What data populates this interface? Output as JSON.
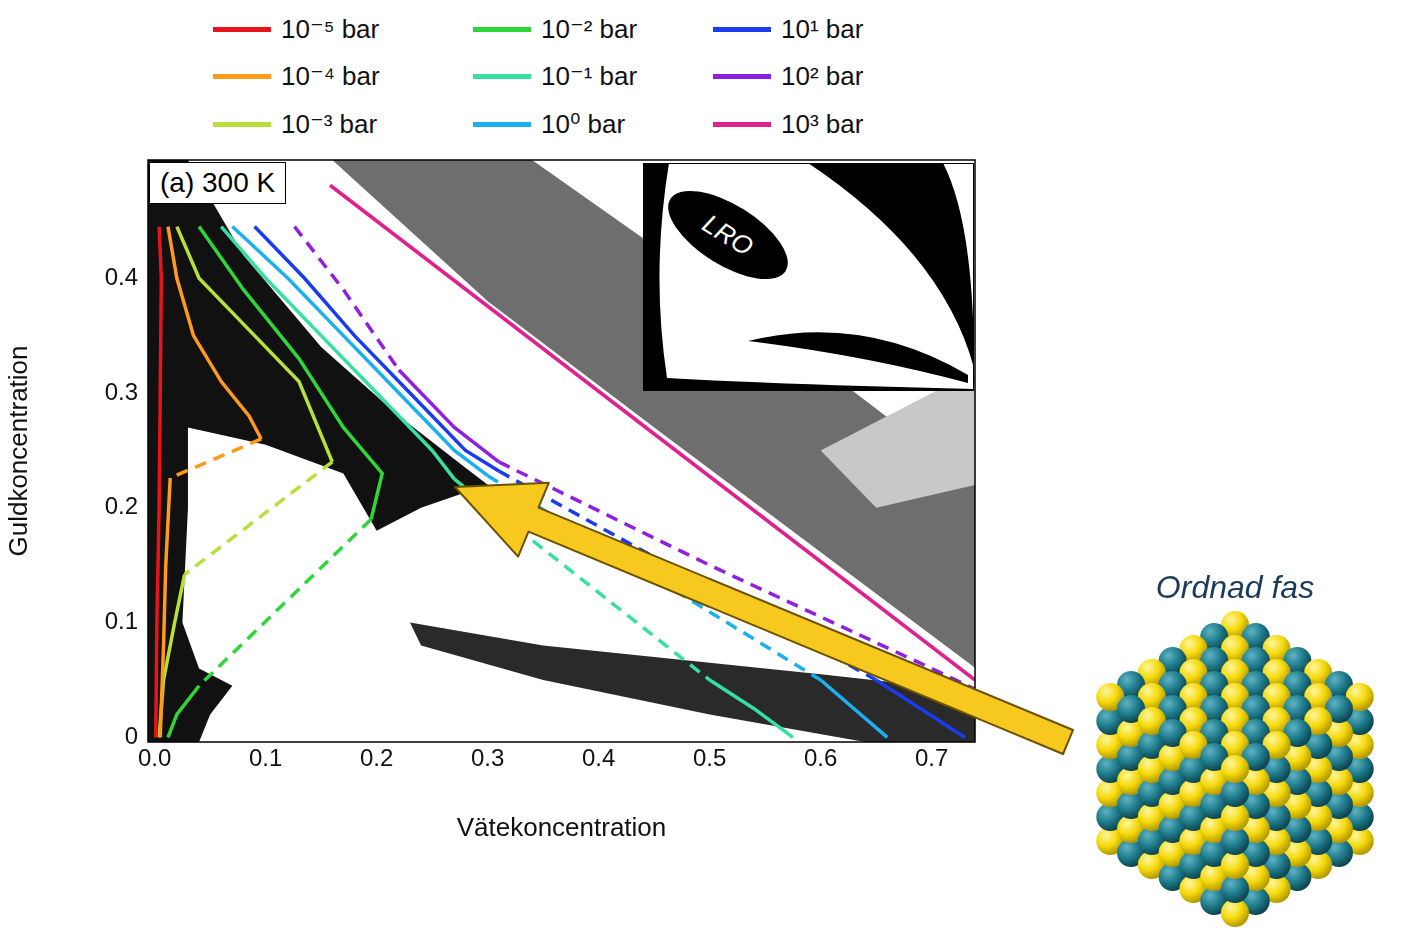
{
  "chart_data": {
    "type": "line",
    "annotations": {
      "panel": "(a) 300 K",
      "inset": "LRO",
      "phase": "Ordnad fas"
    },
    "xlabel": "Vätekoncentration",
    "ylabel": "Guldkoncentration",
    "xlim": [
      -0.006,
      0.739
    ],
    "ylim": [
      -0.004,
      0.503
    ],
    "xticks": [
      {
        "value": 0,
        "label": "0.0"
      },
      0.1,
      0.2,
      0.3,
      0.4,
      0.5,
      0.6,
      0.7
    ],
    "yticks": [
      0,
      0.1,
      0.2,
      0.3,
      0.4
    ],
    "grid": false,
    "legend": "top",
    "regions": [
      {
        "color": "#111111",
        "points": [
          [
            -0.006,
            0.503
          ],
          [
            0.03,
            0.503
          ],
          [
            0.08,
            0.42
          ],
          [
            0.15,
            0.34
          ],
          [
            0.22,
            0.28
          ],
          [
            0.28,
            0.235
          ],
          [
            0.3,
            0.22
          ],
          [
            0.24,
            0.2
          ],
          [
            0.2,
            0.18
          ],
          [
            0.17,
            0.23
          ],
          [
            0.1,
            0.255
          ],
          [
            0.03,
            0.27
          ],
          [
            0.03,
            0.2
          ],
          [
            0.025,
            0.1
          ],
          [
            0.04,
            0.06
          ],
          [
            0.07,
            0.045
          ],
          [
            0.05,
            0.02
          ],
          [
            0.04,
            -0.004
          ],
          [
            -0.006,
            -0.004
          ]
        ]
      },
      {
        "color": "#6e6e6e",
        "points": [
          [
            0.16,
            0.503
          ],
          [
            0.34,
            0.503
          ],
          [
            0.55,
            0.36
          ],
          [
            0.74,
            0.22
          ],
          [
            0.74,
            0.06
          ],
          [
            0.45,
            0.27
          ],
          [
            0.3,
            0.38
          ]
        ]
      },
      {
        "color": "#c8c8c8",
        "points": [
          [
            0.6,
            0.25
          ],
          [
            0.74,
            0.32
          ],
          [
            0.74,
            0.22
          ],
          [
            0.65,
            0.2
          ]
        ]
      },
      {
        "color": "#2a2a2a",
        "points": [
          [
            0.23,
            0.1
          ],
          [
            0.35,
            0.08
          ],
          [
            0.5,
            0.065
          ],
          [
            0.6,
            0.055
          ],
          [
            0.74,
            0.04
          ],
          [
            0.74,
            -0.004
          ],
          [
            0.64,
            -0.004
          ],
          [
            0.5,
            0.02
          ],
          [
            0.35,
            0.05
          ],
          [
            0.24,
            0.08
          ]
        ]
      }
    ],
    "series": [
      {
        "name": "10⁻⁵ bar",
        "color": "#e8141c",
        "segments": [
          {
            "line_style": "solid",
            "points": [
              [
                0.004,
                0.445
              ],
              [
                0.006,
                0.4
              ],
              [
                0.005,
                0.3
              ],
              [
                0.004,
                0.2
              ],
              [
                0.002,
                0.1
              ],
              [
                0.001,
                0
              ]
            ]
          }
        ]
      },
      {
        "name": "10⁻⁴ bar",
        "color": "#ff9a1a",
        "segments": [
          {
            "line_style": "solid",
            "points": [
              [
                0.012,
                0.445
              ],
              [
                0.02,
                0.4
              ],
              [
                0.035,
                0.35
              ],
              [
                0.06,
                0.31
              ],
              [
                0.085,
                0.28
              ],
              [
                0.096,
                0.26
              ]
            ]
          },
          {
            "line_style": "dashed",
            "points": [
              [
                0.096,
                0.26
              ],
              [
                0.014,
                0.226
              ]
            ]
          },
          {
            "line_style": "solid",
            "points": [
              [
                0.014,
                0.226
              ],
              [
                0.01,
                0.15
              ],
              [
                0.008,
                0.08
              ],
              [
                0.005,
                0
              ]
            ]
          }
        ]
      },
      {
        "name": "10⁻³ bar",
        "color": "#b8e03a",
        "segments": [
          {
            "line_style": "solid",
            "points": [
              [
                0.02,
                0.445
              ],
              [
                0.04,
                0.4
              ],
              [
                0.08,
                0.36
              ],
              [
                0.13,
                0.31
              ],
              [
                0.16,
                0.24
              ]
            ]
          },
          {
            "line_style": "dashed",
            "points": [
              [
                0.16,
                0.24
              ],
              [
                0.027,
                0.142
              ]
            ]
          },
          {
            "line_style": "solid",
            "points": [
              [
                0.027,
                0.142
              ],
              [
                0.018,
                0.1
              ],
              [
                0.008,
                0.05
              ],
              [
                0.004,
                0
              ]
            ]
          }
        ]
      },
      {
        "name": "10⁻² bar",
        "color": "#2fd63a",
        "segments": [
          {
            "line_style": "solid",
            "points": [
              [
                0.04,
                0.445
              ],
              [
                0.08,
                0.39
              ],
              [
                0.13,
                0.33
              ],
              [
                0.17,
                0.27
              ],
              [
                0.205,
                0.23
              ],
              [
                0.195,
                0.19
              ]
            ]
          },
          {
            "line_style": "dashed",
            "points": [
              [
                0.195,
                0.19
              ],
              [
                0.04,
                0.045
              ]
            ]
          },
          {
            "line_style": "solid",
            "points": [
              [
                0.04,
                0.045
              ],
              [
                0.02,
                0.02
              ],
              [
                0.012,
                0
              ]
            ]
          }
        ]
      },
      {
        "name": "10⁻¹ bar",
        "color": "#35e0a0",
        "segments": [
          {
            "line_style": "solid",
            "points": [
              [
                0.06,
                0.445
              ],
              [
                0.1,
                0.4
              ],
              [
                0.15,
                0.35
              ],
              [
                0.2,
                0.3
              ],
              [
                0.25,
                0.25
              ],
              [
                0.27,
                0.225
              ]
            ]
          },
          {
            "line_style": "dashed",
            "points": [
              [
                0.27,
                0.225
              ],
              [
                0.5,
                0.05
              ]
            ]
          },
          {
            "line_style": "solid",
            "points": [
              [
                0.5,
                0.05
              ],
              [
                0.54,
                0.025
              ],
              [
                0.575,
                0
              ]
            ]
          }
        ]
      },
      {
        "name": "10⁰ bar",
        "color": "#1ab0f0",
        "segments": [
          {
            "line_style": "solid",
            "points": [
              [
                0.07,
                0.445
              ],
              [
                0.12,
                0.4
              ],
              [
                0.17,
                0.35
              ],
              [
                0.22,
                0.3
              ],
              [
                0.27,
                0.25
              ],
              [
                0.3,
                0.228
              ]
            ]
          },
          {
            "line_style": "dashed",
            "points": [
              [
                0.3,
                0.228
              ],
              [
                0.6,
                0.05
              ]
            ]
          },
          {
            "line_style": "solid",
            "points": [
              [
                0.6,
                0.05
              ],
              [
                0.66,
                0
              ]
            ]
          }
        ]
      },
      {
        "name": "10¹ bar",
        "color": "#1a3cf0",
        "segments": [
          {
            "line_style": "solid",
            "points": [
              [
                0.09,
                0.445
              ],
              [
                0.135,
                0.4
              ],
              [
                0.18,
                0.35
              ],
              [
                0.23,
                0.3
              ],
              [
                0.28,
                0.25
              ],
              [
                0.31,
                0.232
              ]
            ]
          },
          {
            "line_style": "dashed",
            "points": [
              [
                0.31,
                0.232
              ],
              [
                0.65,
                0.05
              ]
            ]
          },
          {
            "line_style": "solid",
            "points": [
              [
                0.65,
                0.05
              ],
              [
                0.73,
                0
              ]
            ]
          }
        ]
      },
      {
        "name": "10² bar",
        "color": "#9020e0",
        "segments": [
          {
            "line_style": "dashed",
            "points": [
              [
                0.126,
                0.445
              ],
              [
                0.17,
                0.39
              ],
              [
                0.22,
                0.32
              ]
            ]
          },
          {
            "line_style": "solid",
            "points": [
              [
                0.22,
                0.32
              ],
              [
                0.27,
                0.27
              ],
              [
                0.31,
                0.24
              ]
            ]
          },
          {
            "line_style": "dashed",
            "points": [
              [
                0.31,
                0.24
              ],
              [
                0.5,
                0.15
              ],
              [
                0.7,
                0.06
              ],
              [
                0.739,
                0.042
              ]
            ]
          }
        ]
      },
      {
        "name": "10³ bar",
        "color": "#e0208c",
        "segments": [
          {
            "line_style": "solid",
            "points": [
              [
                0.158,
                0.481
              ],
              [
                0.739,
                0.05
              ]
            ]
          }
        ]
      }
    ]
  }
}
